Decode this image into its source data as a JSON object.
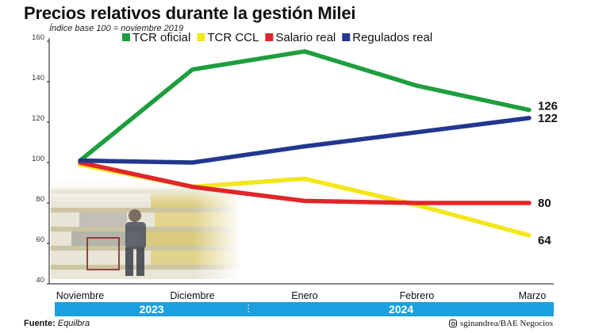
{
  "chart_data": {
    "type": "line",
    "title": "Precios relativos durante la gestión Milei",
    "subtitle": "Índice base 100 = noviembre 2019",
    "categories": [
      "Noviembre",
      "Diciembre",
      "Enero",
      "Febrero",
      "Marzo"
    ],
    "year_groups": [
      {
        "label": "2023",
        "span": [
          "Noviembre",
          "Diciembre"
        ]
      },
      {
        "label": "2024",
        "span": [
          "Enero",
          "Marzo"
        ]
      }
    ],
    "ylim": [
      40,
      160
    ],
    "yticks": [
      40,
      60,
      80,
      100,
      120,
      140,
      160
    ],
    "legend_position": "top",
    "series": [
      {
        "name": "TCR oficial",
        "color": "#1e9e3e",
        "values": [
          101,
          146,
          155,
          138,
          126
        ],
        "end_label": "126"
      },
      {
        "name": "TCR CCL",
        "color": "#f4e61a",
        "values": [
          99,
          88,
          92,
          79,
          64
        ],
        "end_label": "64"
      },
      {
        "name": "Salario real",
        "color": "#e0262a",
        "values": [
          100,
          88,
          81,
          80,
          80
        ],
        "end_label": "80"
      },
      {
        "name": "Regulados real",
        "color": "#23378f",
        "values": [
          101,
          100,
          108,
          115,
          122
        ],
        "end_label": "122"
      }
    ]
  },
  "footer": {
    "source_label": "Fuente:",
    "source_value": "Equilbra",
    "credit": "sginandrea/BAE Negocios"
  }
}
